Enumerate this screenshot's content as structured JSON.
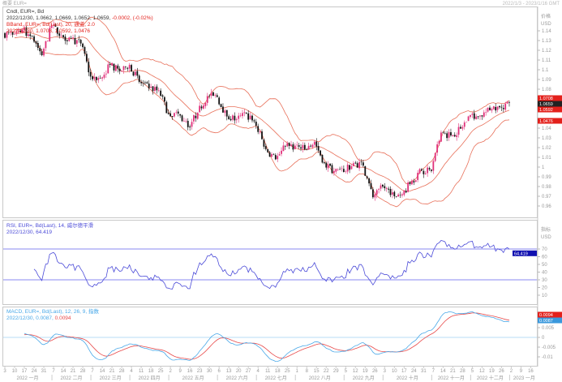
{
  "window": {
    "title": "概要 EUR=",
    "date_range": "2022/1/3 - 2023/1/16 GMT"
  },
  "main_panel": {
    "line1": "Cndl, EUR=, Bd",
    "line2_values": "2022/12/30, 1.0662, 1.0669, 1.0652, 1.0659,",
    "line2_change": "-0.0002, (-0.02%)",
    "line3": "BBand, EUR=, Bd(Last), 20, 通道, 2.0",
    "line4": "2022/12/30, 1.0708, 1.0592, 1.0476",
    "axis_title": "价格",
    "axis_unit": "USD",
    "axis_ticks": [
      "1.14",
      "1.13",
      "1.12",
      "1.11",
      "1.1",
      "1.09",
      "1.08",
      "1.04",
      "1.03",
      "1.02",
      "1.01",
      "1",
      "0.99",
      "0.98",
      "0.97",
      "0.96"
    ],
    "badges": {
      "upper": "1.0708",
      "last": "1.0659",
      "middle": "1.0592",
      "lower": "1.0476"
    }
  },
  "rsi_panel": {
    "line1": "RSI, EUR=, Bd(Last), 14, 威尔德平滑",
    "line2": "2022/12/30, 64.419",
    "axis_title": "指标",
    "axis_unit": "USD",
    "axis_ticks": [
      "70",
      "60",
      "50",
      "40",
      "30",
      "20",
      "10"
    ],
    "badge": "64.419",
    "levels": [
      70,
      30
    ]
  },
  "macd_panel": {
    "line1": "MACD, EUR=, Bd(Last), 12, 26, 9, 指数",
    "line2_a": "2022/12/30, 0.0087,",
    "line2_b": "0.0094",
    "axis_ticks": [
      "0.005",
      "0",
      "-0.005",
      "-0.01"
    ],
    "badge_signal": "0.0094",
    "badge_macd": "0.0087"
  },
  "colors": {
    "up_candle": "#e0307a",
    "down_candle": "#111111",
    "bands": "#e8705a",
    "rsi": "#4b4bd8",
    "rsi_levels": "#8a8af0",
    "macd": "#49a8e8",
    "signal": "#e84a4a",
    "badge_red": "#e3201b",
    "badge_dark": "#222222",
    "badge_blue": "#1010b0"
  },
  "chart_data": {
    "type": "candlestick",
    "title": "Cndl, EUR=, Bd",
    "frequency_of_closes": "weekly closes (daily candles rendered)",
    "weekly_closes": [
      1.136,
      1.141,
      1.1345,
      1.115,
      1.145,
      1.135,
      1.132,
      1.127,
      1.093,
      1.091,
      1.105,
      1.0985,
      1.105,
      1.0875,
      1.081,
      1.079,
      1.0545,
      1.055,
      1.041,
      1.056,
      1.073,
      1.072,
      1.052,
      1.049,
      1.055,
      1.0425,
      1.0185,
      1.008,
      1.021,
      1.022,
      1.018,
      1.026,
      1.004,
      0.996,
      0.995,
      1.004,
      1.0015,
      0.969,
      0.98,
      0.974,
      0.972,
      0.986,
      0.9965,
      0.996,
      1.0355,
      1.0325,
      1.0395,
      1.0535,
      1.053,
      1.0585,
      1.0615,
      1.0659
    ],
    "first_open": 1.137,
    "ylim": [
      0.955,
      1.145
    ],
    "x_ticks": [
      "3",
      "10",
      "17",
      "24",
      "31",
      "7",
      "14",
      "21",
      "28",
      "7",
      "14",
      "21",
      "28",
      "4",
      "11",
      "18",
      "25",
      "2",
      "9",
      "16",
      "23",
      "30",
      "6",
      "13",
      "20",
      "27",
      "4",
      "11",
      "18",
      "25",
      "1",
      "8",
      "15",
      "22",
      "29",
      "5",
      "12",
      "19",
      "26",
      "3",
      "10",
      "17",
      "24",
      "31",
      "7",
      "14",
      "21",
      "28",
      "5",
      "12",
      "19",
      "26",
      "2",
      "9",
      "16"
    ],
    "month_labels": [
      "2022 一月",
      "2022 二月",
      "2022 三月",
      "2022 四月",
      "2022 五月",
      "2022 六月",
      "2022 七月",
      "2022 八月",
      "2022 九月",
      "2022 十月",
      "2022 十一月",
      "2022 十二月",
      "2023 一月"
    ]
  }
}
